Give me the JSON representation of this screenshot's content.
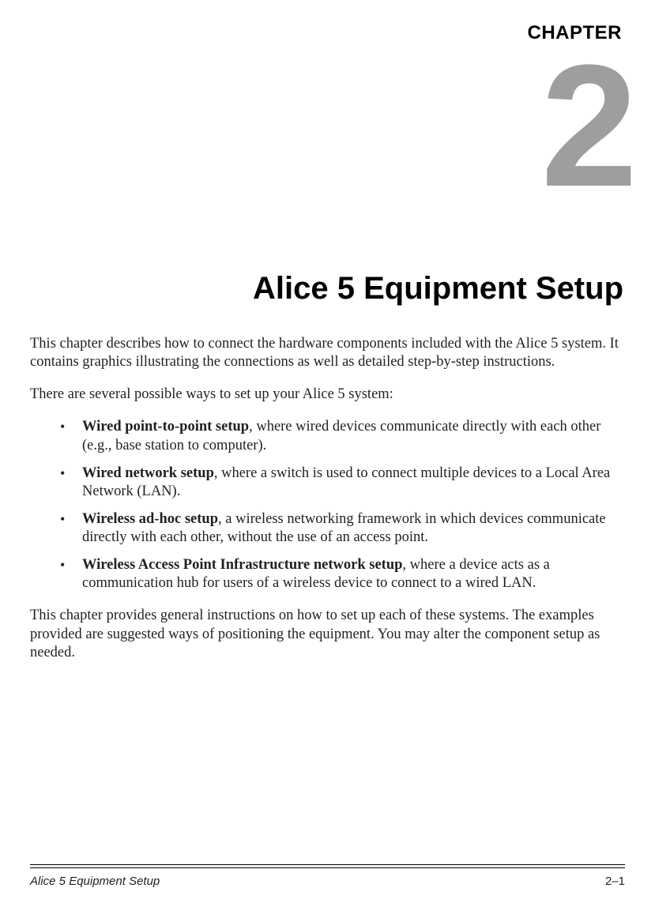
{
  "chapter": {
    "label": "CHAPTER",
    "number": "2",
    "title": "Alice 5 Equipment Setup"
  },
  "body": {
    "intro": "This chapter describes how to connect the hardware components included with the Alice 5 system. It contains graphics illustrating the connections as well as detailed step-by-step instructions.",
    "lead": "There are several possible ways to set up your Alice 5 system:",
    "bullets": [
      {
        "bold": "Wired point-to-point setup",
        "rest": ", where wired devices communicate directly with each other (e.g., base station to computer)."
      },
      {
        "bold": "Wired network setup",
        "rest": ", where a switch is used to connect multiple devices to a Local Area Network (LAN)."
      },
      {
        "bold": "Wireless ad-hoc setup",
        "rest": ", a wireless networking framework in which devices communicate directly with each other, without the use of an access point."
      },
      {
        "bold": "Wireless Access Point Infrastructure network setup",
        "rest": ", where a device acts as a communication hub for users of a wireless device to connect to a wired LAN."
      }
    ],
    "closing": "This chapter provides general instructions on how to set up each of these systems. The examples provided are suggested ways of positioning the equipment. You may alter the component setup as needed."
  },
  "footer": {
    "left": "Alice 5 Equipment Setup",
    "right": "2–1"
  },
  "colors": {
    "text": "#231f20",
    "chapter_number": "#9e9e9e",
    "background": "#ffffff",
    "rule": "#000000"
  },
  "typography": {
    "body_family": "Times New Roman",
    "heading_family": "Arial",
    "title_size_pt": 30,
    "chapter_number_size_pt": 165,
    "body_size_pt": 14
  }
}
